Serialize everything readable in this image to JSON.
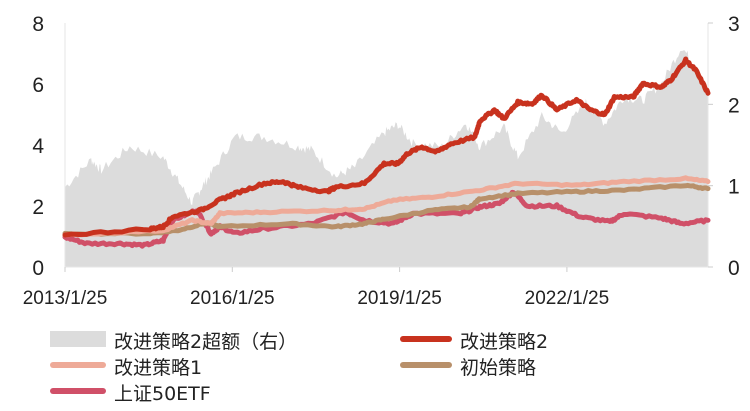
{
  "chart_data": {
    "type": "line",
    "title": "",
    "x_unit": "year (decimal)",
    "xlim": [
      2013.07,
      2024.6
    ],
    "x_ticks": [
      {
        "label": "2013/1/25",
        "x": 2013.07
      },
      {
        "label": "2016/1/25",
        "x": 2016.07
      },
      {
        "label": "2019/1/25",
        "x": 2019.07
      },
      {
        "label": "2022/1/25",
        "x": 2022.07
      }
    ],
    "y_left": {
      "lim": [
        0,
        8
      ],
      "ticks": [
        "0",
        "2",
        "4",
        "6",
        "8"
      ]
    },
    "y_right": {
      "lim": [
        0,
        3
      ],
      "ticks": [
        "0",
        "1",
        "2",
        "3"
      ]
    },
    "legend_position": "bottom",
    "series": [
      {
        "name": "改进策略2超额（右）",
        "type": "area",
        "axis": "right",
        "color": "#dcdcdc",
        "x": [
          2013.07,
          2013.54,
          2013.72,
          2014.23,
          2014.83,
          2015.09,
          2015.35,
          2015.52,
          2015.69,
          2016.12,
          2016.64,
          2017.25,
          2017.5,
          2017.93,
          2018.27,
          2018.79,
          2019.04,
          2019.31,
          2019.83,
          2020.26,
          2020.51,
          2020.94,
          2021.19,
          2021.62,
          2021.98,
          2022.41,
          2022.75,
          2023.09,
          2023.43,
          2023.77,
          2024.13,
          2024.38,
          2024.6
        ],
        "y": [
          0.98,
          1.32,
          1.19,
          1.48,
          1.35,
          1.07,
          0.79,
          0.98,
          1.15,
          1.6,
          1.6,
          1.48,
          1.44,
          1.11,
          1.23,
          1.65,
          1.75,
          1.52,
          1.48,
          1.77,
          1.48,
          1.72,
          1.35,
          1.85,
          1.65,
          2.02,
          1.77,
          2.09,
          2.05,
          2.26,
          2.71,
          2.46,
          2.14
        ]
      },
      {
        "name": "改进策略2",
        "type": "line",
        "axis": "left",
        "color": "#c8321e",
        "x": [
          2013.07,
          2014.6,
          2014.83,
          2015.0,
          2015.52,
          2015.85,
          2016.12,
          2016.64,
          2016.98,
          2017.25,
          2017.77,
          2017.93,
          2018.44,
          2018.79,
          2019.04,
          2019.21,
          2019.47,
          2019.73,
          2019.99,
          2020.42,
          2020.51,
          2020.77,
          2020.94,
          2021.19,
          2021.45,
          2021.62,
          2021.89,
          2022.24,
          2022.49,
          2022.75,
          2022.92,
          2023.26,
          2023.43,
          2023.77,
          2023.94,
          2024.2,
          2024.38,
          2024.6
        ],
        "y": [
          1.05,
          1.25,
          1.32,
          1.65,
          1.87,
          2.2,
          2.41,
          2.74,
          2.8,
          2.62,
          2.47,
          2.62,
          2.74,
          3.39,
          3.39,
          3.72,
          3.94,
          3.77,
          4.04,
          4.26,
          4.8,
          5.15,
          4.86,
          5.4,
          5.35,
          5.64,
          5.15,
          5.48,
          5.15,
          4.99,
          5.57,
          5.57,
          6.02,
          5.9,
          6.15,
          6.78,
          6.45,
          5.7
        ]
      },
      {
        "name": "改进策略1",
        "type": "line",
        "axis": "left",
        "color": "#eeaa98",
        "x": [
          2013.07,
          2014.83,
          2015.35,
          2015.69,
          2015.85,
          2016.64,
          2017.93,
          2018.44,
          2018.96,
          2019.65,
          2020.51,
          2021.19,
          2022.24,
          2023.09,
          2024.2,
          2024.6
        ],
        "y": [
          1.05,
          1.2,
          1.53,
          1.42,
          1.76,
          1.8,
          1.86,
          1.91,
          2.19,
          2.3,
          2.52,
          2.74,
          2.68,
          2.8,
          2.9,
          2.8
        ]
      },
      {
        "name": "初始策略",
        "type": "line",
        "axis": "left",
        "color": "#b8906a",
        "x": [
          2013.07,
          2014.6,
          2015.09,
          2015.61,
          2015.85,
          2017.08,
          2017.93,
          2018.44,
          2018.79,
          2019.65,
          2020.34,
          2020.51,
          2021.19,
          2022.24,
          2023.09,
          2024.2,
          2024.6
        ],
        "y": [
          1.1,
          1.1,
          1.2,
          1.45,
          1.32,
          1.42,
          1.32,
          1.42,
          1.57,
          1.86,
          1.97,
          2.24,
          2.41,
          2.47,
          2.52,
          2.68,
          2.57
        ]
      },
      {
        "name": "上证50ETF",
        "type": "line",
        "axis": "left",
        "color": "#d05068",
        "x": [
          2013.07,
          2013.46,
          2014.06,
          2014.49,
          2014.83,
          2015.0,
          2015.43,
          2015.69,
          2015.85,
          2016.12,
          2016.64,
          2017.5,
          2018.1,
          2018.44,
          2018.96,
          2019.31,
          2020.17,
          2020.51,
          2020.86,
          2021.11,
          2021.36,
          2021.89,
          2022.32,
          2022.84,
          2023.09,
          2023.77,
          2024.13,
          2024.6
        ],
        "y": [
          0.98,
          0.77,
          0.77,
          0.71,
          0.87,
          1.53,
          1.87,
          1.1,
          1.32,
          1.1,
          1.26,
          1.42,
          1.8,
          1.53,
          1.42,
          1.75,
          1.75,
          1.97,
          2.08,
          2.47,
          2.0,
          2.0,
          1.64,
          1.48,
          1.75,
          1.6,
          1.42,
          1.53
        ]
      }
    ]
  }
}
